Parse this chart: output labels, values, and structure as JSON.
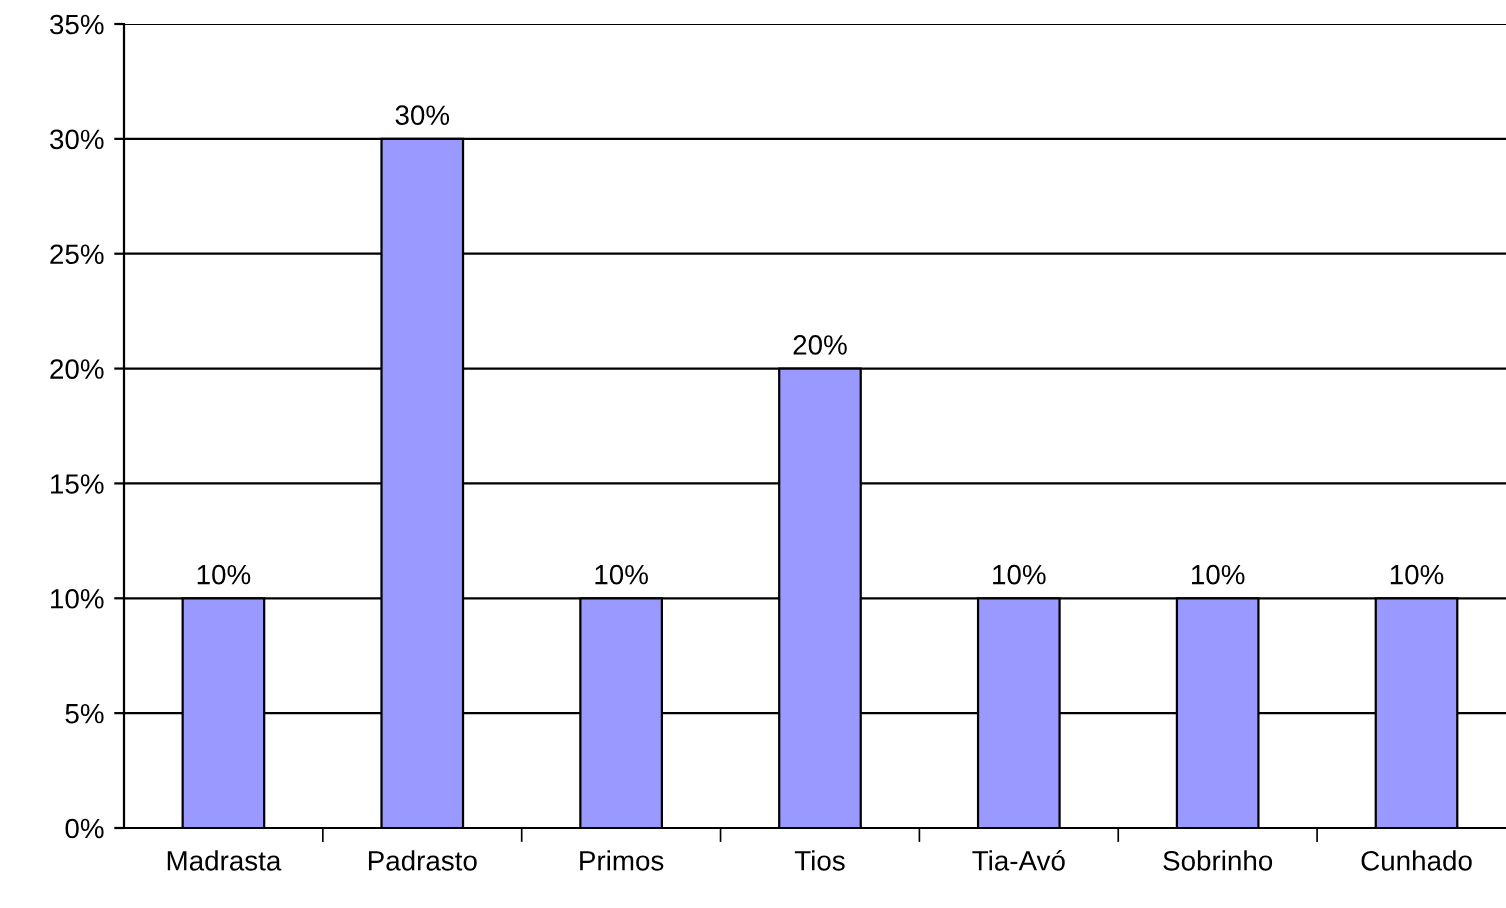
{
  "chart_data": {
    "type": "bar",
    "categories": [
      "Madrasta",
      "Padrasto",
      "Primos",
      "Tios",
      "Tia-Avó",
      "Sobrinho",
      "Cunhado"
    ],
    "values": [
      10,
      30,
      10,
      20,
      10,
      10,
      10
    ],
    "value_labels": [
      "10%",
      "30%",
      "10%",
      "20%",
      "10%",
      "10%",
      "10%"
    ],
    "color": "#9999ff",
    "ylim": [
      0,
      35
    ],
    "yticks": [
      {
        "value": 0,
        "label": "0%"
      },
      {
        "value": 5,
        "label": "5%"
      },
      {
        "value": 10,
        "label": "10%"
      },
      {
        "value": 15,
        "label": "15%"
      },
      {
        "value": 20,
        "label": "20%"
      },
      {
        "value": 25,
        "label": "25%"
      },
      {
        "value": 30,
        "label": "30%"
      },
      {
        "value": 35,
        "label": "35%"
      }
    ],
    "grid": "y",
    "legend": false
  }
}
